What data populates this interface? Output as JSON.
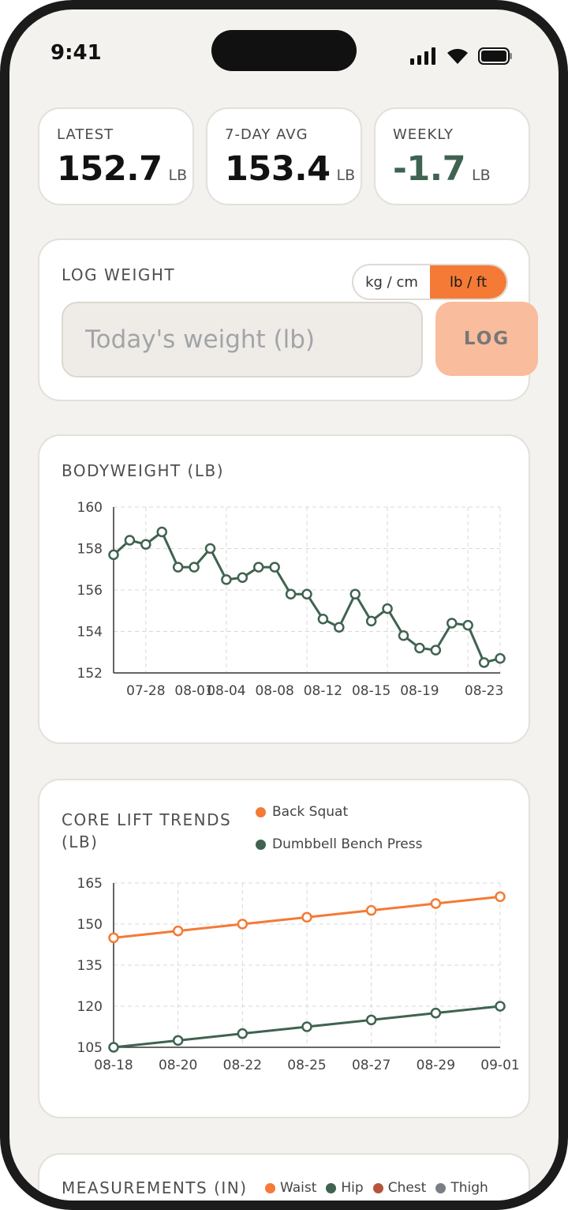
{
  "status_bar": {
    "time": "9:41"
  },
  "stats": [
    {
      "label": "LATEST",
      "value": "152.7",
      "unit": "LB"
    },
    {
      "label": "7-DAY AVG",
      "value": "153.4",
      "unit": "LB"
    },
    {
      "label": "WEEKLY",
      "value": "-1.7",
      "unit": "LB"
    }
  ],
  "log_weight": {
    "title": "LOG WEIGHT",
    "unit_options": [
      "kg / cm",
      "lb / ft"
    ],
    "selected_unit": "lb / ft",
    "input_placeholder": "Today's weight (lb)",
    "input_value": "",
    "log_button": "LOG"
  },
  "colors": {
    "accent": "#f47a36",
    "green": "#3f6350",
    "chest": "#b5533c",
    "thigh": "#7b7e84"
  },
  "bodyweight_chart": {
    "title": "BODYWEIGHT (LB)"
  },
  "lift_chart": {
    "title_line1": "CORE LIFT TRENDS",
    "title_line2": "(LB)"
  },
  "measurements": {
    "title": "MEASUREMENTS (IN)",
    "legend": [
      "Waist",
      "Hip",
      "Chest",
      "Thigh"
    ]
  },
  "chart_data": [
    {
      "type": "line",
      "title": "BODYWEIGHT (LB)",
      "ylim": [
        152,
        160
      ],
      "yticks": [
        152,
        154,
        156,
        158,
        160
      ],
      "tick_labels": [
        "07-28",
        "08-01",
        "08-04",
        "08-08",
        "08-12",
        "08-15",
        "08-19",
        "08-23"
      ],
      "series": [
        {
          "values": [
            157.7,
            158.4,
            158.2,
            158.8,
            157.1,
            157.1,
            158.0,
            156.5,
            156.6,
            157.1,
            157.1,
            155.8,
            155.8,
            154.6,
            154.2,
            155.8,
            154.5,
            155.1,
            153.8,
            153.2,
            153.1,
            154.4,
            154.3,
            152.5,
            152.7
          ]
        }
      ]
    },
    {
      "type": "line",
      "title": "CORE LIFT TRENDS (LB)",
      "ylim": [
        105,
        165
      ],
      "yticks": [
        105,
        120,
        135,
        150,
        165
      ],
      "categories": [
        "08-18",
        "08-20",
        "08-22",
        "08-25",
        "08-27",
        "08-29",
        "09-01"
      ],
      "series": [
        {
          "name": "Back Squat",
          "values": [
            145,
            147.5,
            150,
            152.5,
            155,
            157.5,
            160
          ]
        },
        {
          "name": "Dumbbell Bench Press",
          "values": [
            105,
            107.5,
            110,
            112.5,
            115,
            117.5,
            120
          ]
        }
      ]
    }
  ]
}
